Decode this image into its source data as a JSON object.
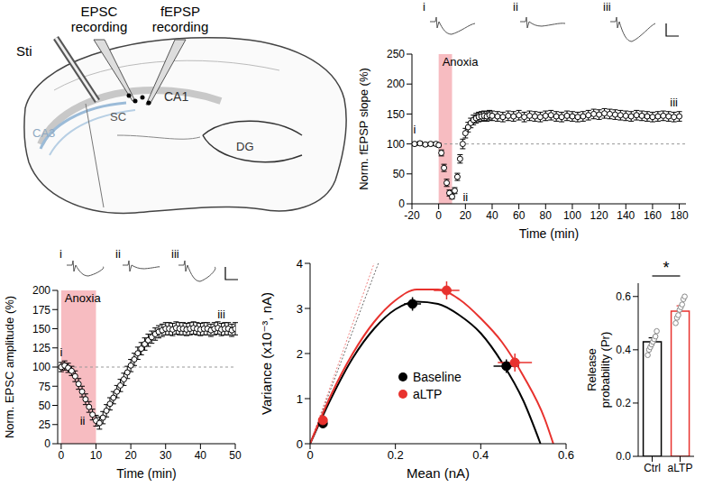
{
  "diagram": {
    "labels": {
      "stimulation": "Sti",
      "epsc": "EPSC recording",
      "fepsp": "fEPSP recording",
      "sc": "SC",
      "ca1": "CA1",
      "ca3": "CA3",
      "dg": "DG"
    }
  },
  "chart_data": [
    {
      "type": "scatter",
      "x_label": "Time (min)",
      "y_label": "Norm. fEPSP slope (%)",
      "xlim": [
        -20,
        185
      ],
      "xticks": [
        -20,
        0,
        20,
        40,
        60,
        80,
        100,
        120,
        140,
        160,
        180
      ],
      "ylim": [
        0,
        250
      ],
      "yticks": [
        0,
        50,
        100,
        150,
        200,
        250
      ],
      "marker": "open_circle",
      "color": "#000000",
      "reference_line": 100,
      "annotation": {
        "text": "Anoxia",
        "x_range": [
          0,
          10
        ],
        "color": "#f4a0a6"
      },
      "trace_points": [
        {
          "label": "i",
          "x": -18
        },
        {
          "label": "ii",
          "x": 10
        },
        {
          "label": "iii",
          "x": 176
        }
      ],
      "x": [
        -18,
        -14,
        -10,
        -6,
        -2,
        0,
        2,
        4,
        6,
        8,
        10,
        12,
        14,
        16,
        18,
        20,
        22,
        24,
        26,
        28,
        30,
        32,
        34,
        36,
        38,
        40,
        44,
        48,
        52,
        56,
        60,
        64,
        68,
        72,
        76,
        80,
        84,
        88,
        92,
        96,
        100,
        104,
        108,
        112,
        116,
        120,
        124,
        128,
        132,
        136,
        140,
        144,
        148,
        152,
        156,
        160,
        164,
        168,
        172,
        176,
        180
      ],
      "values": [
        100,
        101,
        99,
        100,
        100,
        98,
        85,
        60,
        35,
        18,
        12,
        22,
        45,
        75,
        100,
        118,
        128,
        135,
        140,
        143,
        145,
        146,
        147,
        146,
        148,
        147,
        146,
        145,
        147,
        146,
        148,
        145,
        147,
        146,
        145,
        147,
        148,
        146,
        145,
        147,
        146,
        145,
        146,
        148,
        150,
        149,
        151,
        150,
        149,
        148,
        147,
        146,
        148,
        147,
        146,
        145,
        146,
        147,
        146,
        145,
        146
      ],
      "errors": [
        3,
        3,
        3,
        3,
        3,
        3,
        5,
        6,
        6,
        5,
        4,
        5,
        6,
        7,
        8,
        8,
        8,
        8,
        8,
        8,
        8,
        8,
        8,
        8,
        8,
        8,
        8,
        8,
        8,
        8,
        8,
        8,
        8,
        8,
        8,
        8,
        8,
        8,
        8,
        8,
        8,
        8,
        8,
        8,
        8,
        8,
        8,
        8,
        8,
        8,
        8,
        8,
        8,
        8,
        8,
        8,
        8,
        8,
        8,
        8,
        8
      ]
    },
    {
      "type": "scatter",
      "x_label": "Time (min)",
      "y_label": "Norm. EPSC amplitude (%)",
      "xlim": [
        -1,
        50
      ],
      "xticks": [
        0,
        10,
        20,
        30,
        40,
        50
      ],
      "ylim": [
        0,
        200
      ],
      "yticks": [
        0,
        25,
        50,
        75,
        100,
        125,
        150,
        175,
        200
      ],
      "marker": "open_circle",
      "color": "#000000",
      "reference_line": 100,
      "annotation": {
        "text": "Anoxia",
        "x_range": [
          0,
          10
        ],
        "color": "#f4a0a6"
      },
      "trace_points": [
        {
          "label": "i",
          "x": 0
        },
        {
          "label": "ii",
          "x": 10
        },
        {
          "label": "iii",
          "x": 46
        }
      ],
      "x": [
        0,
        1,
        2,
        3,
        4,
        5,
        6,
        7,
        8,
        9,
        10,
        11,
        12,
        13,
        14,
        15,
        16,
        17,
        18,
        19,
        20,
        21,
        22,
        23,
        24,
        25,
        26,
        27,
        28,
        29,
        30,
        31,
        32,
        33,
        34,
        35,
        36,
        37,
        38,
        39,
        40,
        41,
        42,
        43,
        44,
        45,
        46,
        47,
        48,
        49,
        50
      ],
      "values": [
        100,
        102,
        99,
        95,
        88,
        78,
        68,
        58,
        48,
        38,
        30,
        27,
        34,
        43,
        52,
        60,
        68,
        76,
        84,
        93,
        102,
        110,
        118,
        124,
        130,
        135,
        139,
        143,
        146,
        148,
        150,
        150,
        149,
        151,
        150,
        150,
        149,
        150,
        151,
        150,
        149,
        150,
        150,
        148,
        150,
        151,
        149,
        150,
        150,
        148,
        150
      ],
      "errors": [
        6,
        6,
        6,
        6,
        7,
        7,
        7,
        7,
        7,
        7,
        7,
        8,
        8,
        8,
        8,
        8,
        8,
        8,
        8,
        8,
        8,
        8,
        8,
        8,
        8,
        8,
        8,
        8,
        8,
        8,
        8,
        8,
        8,
        8,
        8,
        8,
        8,
        8,
        8,
        8,
        8,
        8,
        8,
        8,
        8,
        8,
        8,
        8,
        8,
        8,
        8
      ]
    },
    {
      "type": "scatter",
      "x_label": "Mean (nA)",
      "y_label": "Variance (x10⁻³, nA)",
      "xlim": [
        0,
        0.6
      ],
      "xticks": [
        0,
        0.2,
        0.4,
        0.6
      ],
      "ylim": [
        0,
        4
      ],
      "yticks": [
        0,
        1,
        2,
        3,
        4
      ],
      "legend": "bottom",
      "marker": "circle",
      "series": [
        {
          "name": "Baseline",
          "color": "#000000",
          "x": [
            0.03,
            0.24,
            0.46
          ],
          "values": [
            0.45,
            3.1,
            1.72
          ],
          "x_errors": [
            0.003,
            0.02,
            0.03
          ],
          "errors": [
            0.05,
            0.15,
            0.15
          ],
          "fit": {
            "x": [
              0,
              0.05,
              0.1,
              0.15,
              0.2,
              0.25,
              0.3,
              0.35,
              0.4,
              0.45,
              0.5,
              0.54
            ],
            "values": [
              0,
              1.02,
              1.9,
              2.55,
              2.98,
              3.15,
              3.1,
              2.85,
              2.45,
              1.8,
              0.95,
              0
            ]
          },
          "initial_slope": {
            "x": [
              0,
              0.16
            ],
            "values": [
              0,
              4
            ]
          }
        },
        {
          "name": "aLTP",
          "color": "#e8322e",
          "x": [
            0.03,
            0.32,
            0.48
          ],
          "values": [
            0.52,
            3.4,
            1.8
          ],
          "x_errors": [
            0.003,
            0.03,
            0.04
          ],
          "errors": [
            0.05,
            0.2,
            0.2
          ],
          "fit": {
            "x": [
              0,
              0.05,
              0.1,
              0.15,
              0.2,
              0.25,
              0.3,
              0.35,
              0.4,
              0.45,
              0.5,
              0.55,
              0.57
            ],
            "values": [
              0,
              1.1,
              2.0,
              2.7,
              3.18,
              3.42,
              3.42,
              3.2,
              2.78,
              2.25,
              1.5,
              0.55,
              0
            ]
          },
          "initial_slope": {
            "x": [
              0,
              0.15
            ],
            "values": [
              0,
              4
            ]
          }
        }
      ]
    },
    {
      "type": "bar",
      "y_label": "Release probability (Pr)",
      "categories": [
        "Ctrl",
        "aLTP"
      ],
      "values": [
        0.43,
        0.545
      ],
      "errors": [
        0.015,
        0.02
      ],
      "colors": [
        "#000000",
        "#e8322e"
      ],
      "points": [
        [
          0.38,
          0.4,
          0.41,
          0.42,
          0.43,
          0.44,
          0.45,
          0.47
        ],
        [
          0.5,
          0.52,
          0.53,
          0.55,
          0.56,
          0.57,
          0.59,
          0.6
        ]
      ],
      "ylim": [
        0,
        0.65
      ],
      "yticks": [
        {
          "value": 0,
          "label": "0.0"
        },
        0.2,
        0.4,
        0.6
      ],
      "significance": "*"
    }
  ]
}
